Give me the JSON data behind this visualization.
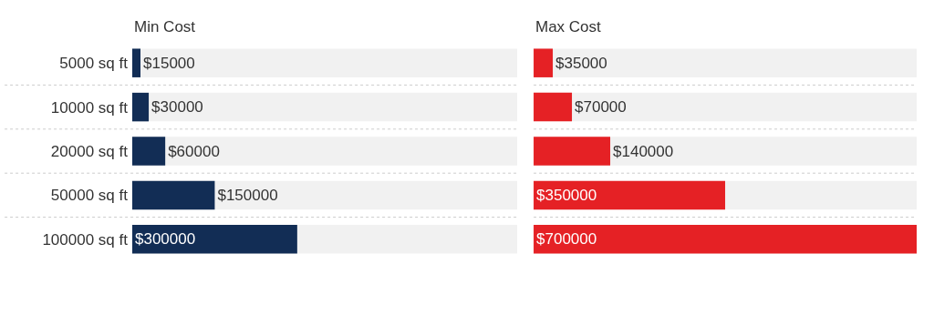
{
  "chart_data": [
    {
      "type": "bar",
      "orientation": "horizontal",
      "title": "Min Cost",
      "categories": [
        "5000 sq ft",
        "10000 sq ft",
        "20000 sq ft",
        "50000 sq ft",
        "100000 sq ft"
      ],
      "values": [
        15000,
        30000,
        60000,
        150000,
        300000
      ],
      "color": "#122d55",
      "value_labels": [
        "$15000",
        "$30000",
        "$60000",
        "$150000",
        "$300000"
      ],
      "xlim": [
        0,
        700000
      ],
      "tick_labels": "y"
    },
    {
      "type": "bar",
      "orientation": "horizontal",
      "title": "Max Cost",
      "categories": [
        "5000 sq ft",
        "10000 sq ft",
        "20000 sq ft",
        "50000 sq ft",
        "100000 sq ft"
      ],
      "values": [
        35000,
        70000,
        140000,
        350000,
        700000
      ],
      "color": "#e52125",
      "value_labels": [
        "$35000",
        "$70000",
        "$140000",
        "$350000",
        "$700000"
      ],
      "xlim": [
        0,
        700000
      ],
      "tick_labels": false
    }
  ]
}
